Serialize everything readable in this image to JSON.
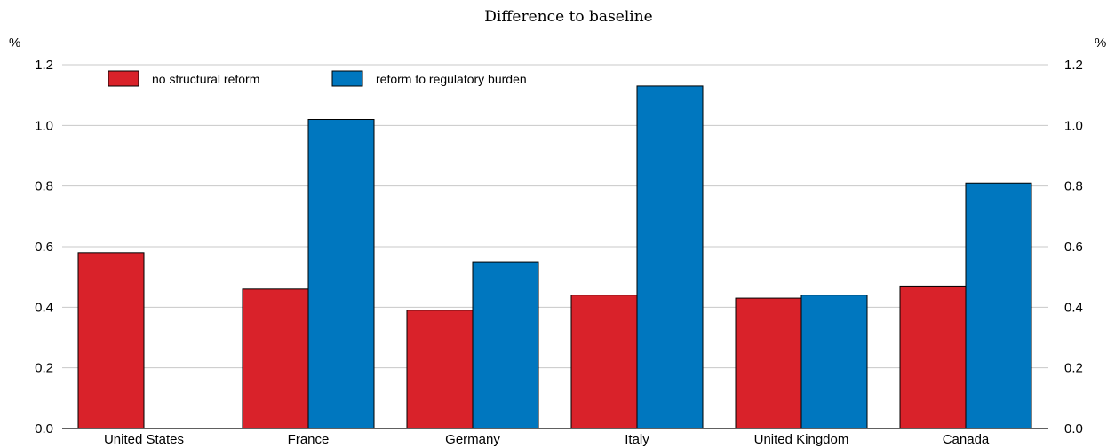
{
  "chart_data": {
    "type": "bar",
    "title": "",
    "subtitle": "Difference to baseline",
    "xlabel": "",
    "ylabel": "%",
    "ylabel_right": "%",
    "ylim": [
      0,
      1.2
    ],
    "yticks": [
      "0.0",
      "0.2",
      "0.4",
      "0.6",
      "0.8",
      "1.0",
      "1.2"
    ],
    "grid": true,
    "legend_position": "top-left",
    "categories": [
      "United States",
      "France",
      "Germany",
      "Italy",
      "United Kingdom",
      "Canada"
    ],
    "series": [
      {
        "name": "no structural reform",
        "color": "#d9222a",
        "values": [
          0.58,
          0.46,
          0.39,
          0.44,
          0.43,
          0.47
        ]
      },
      {
        "name": "reform to regulatory burden",
        "color": "#0077bf",
        "values": [
          null,
          1.02,
          0.55,
          1.13,
          0.44,
          0.81
        ]
      }
    ]
  }
}
